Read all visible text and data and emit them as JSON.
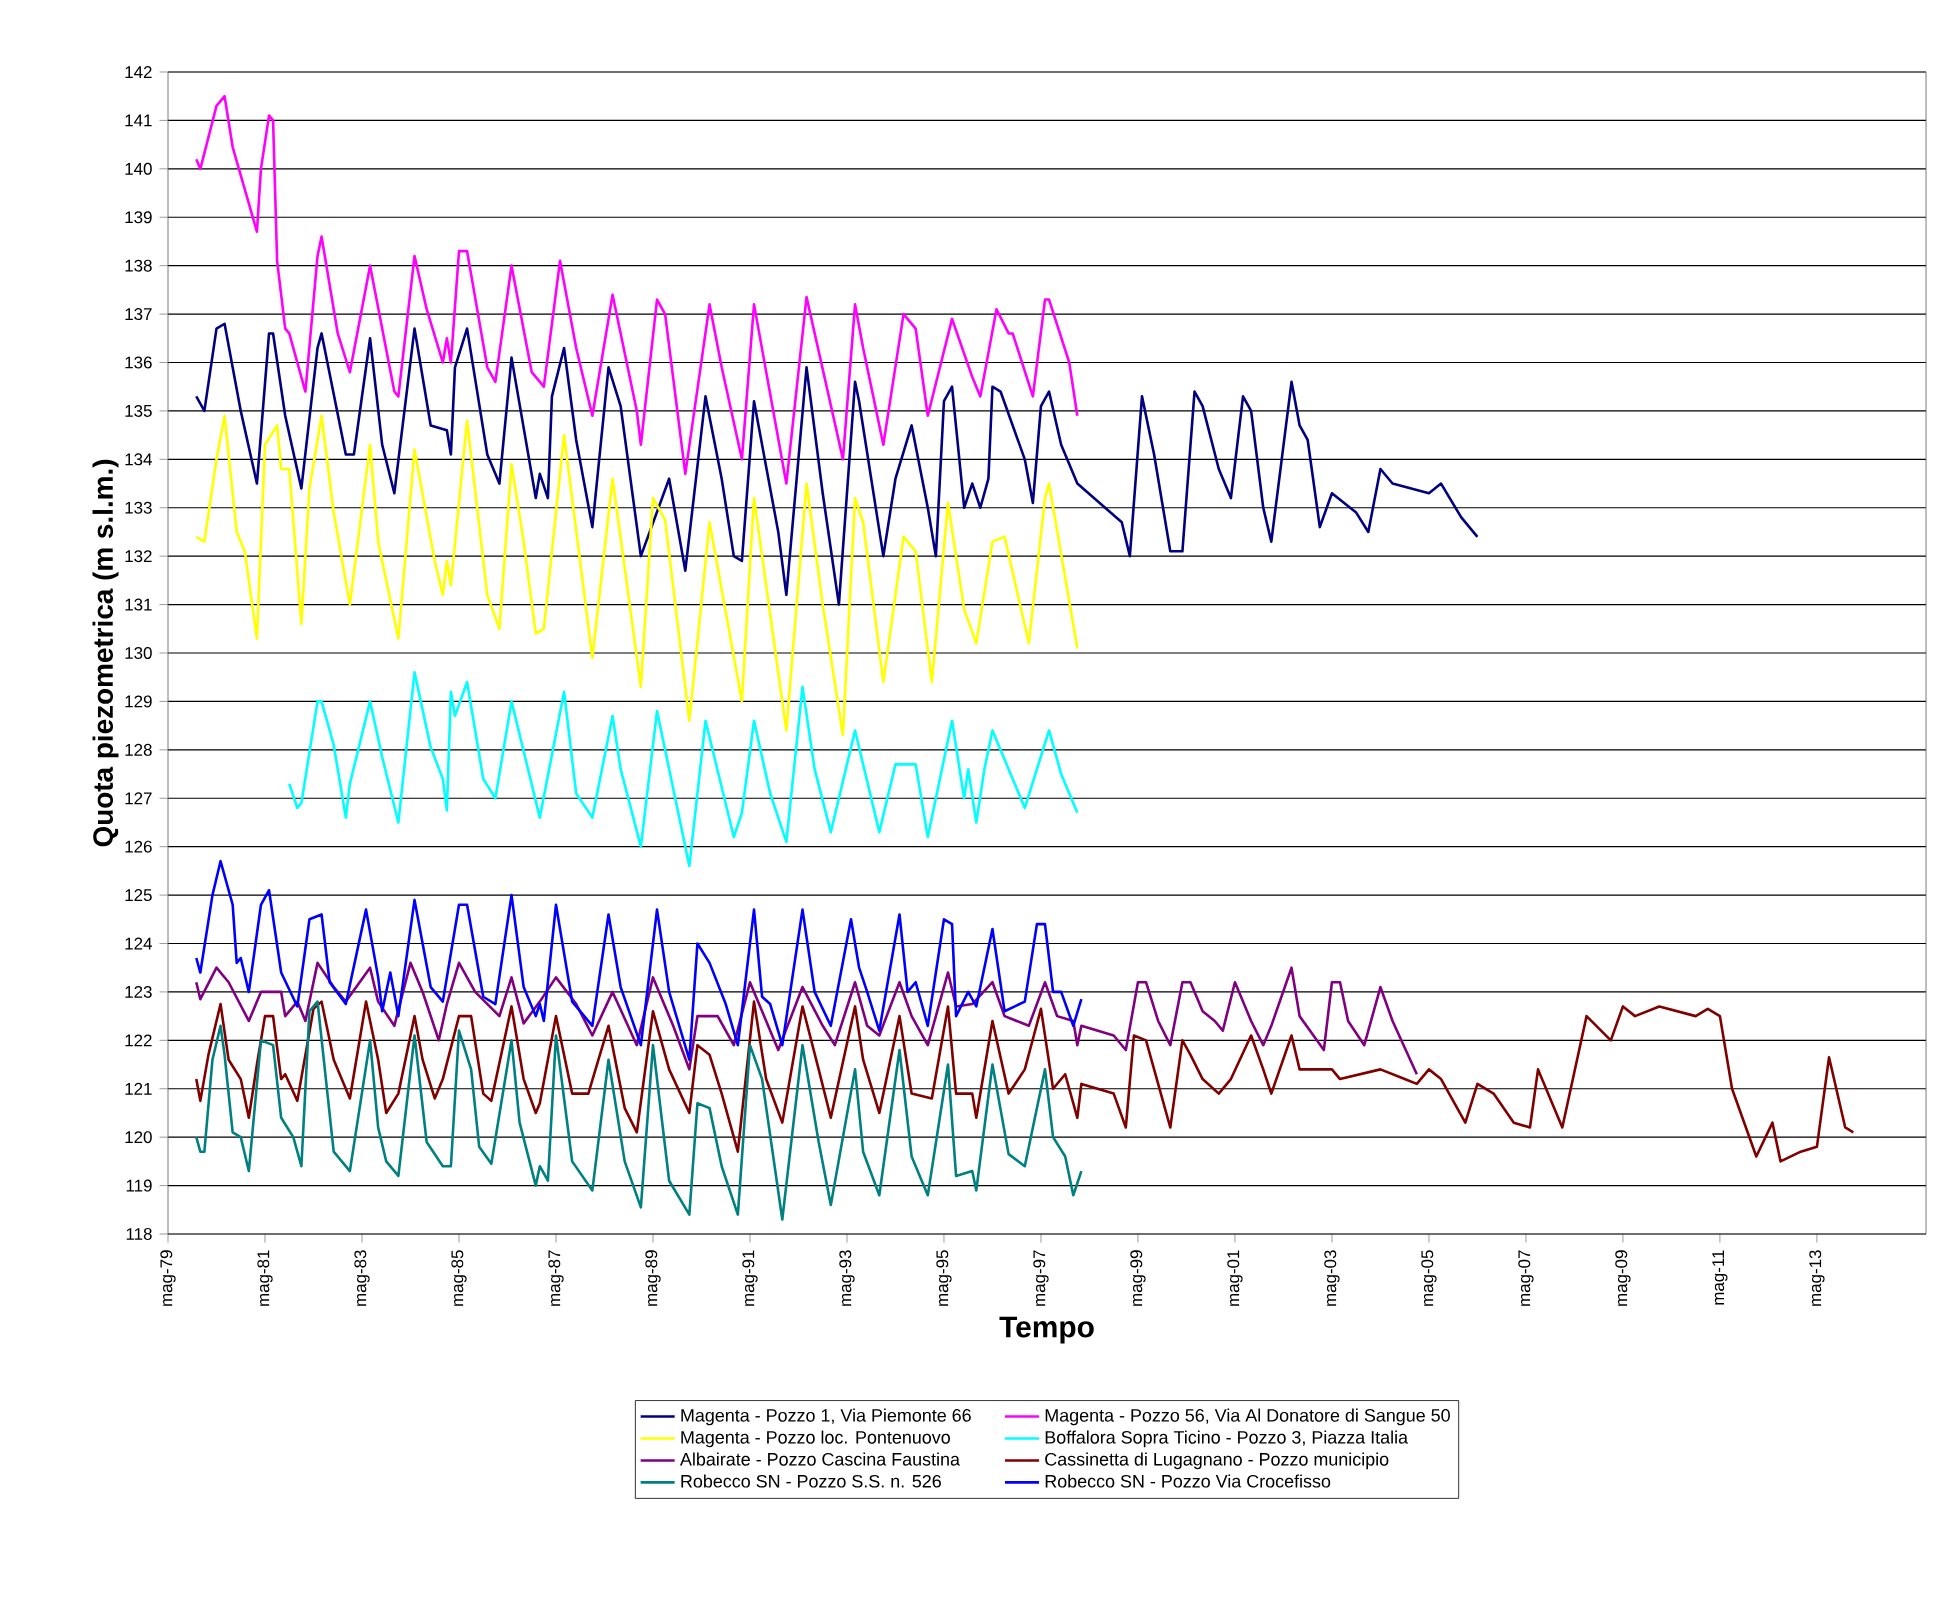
{
  "chart_data": {
    "type": "line",
    "xlabel": "Tempo",
    "ylabel": "Quota piezometrica (m s.l.m.)",
    "xlim": [
      "1979-05",
      "2015-08"
    ],
    "ylim": [
      118,
      142
    ],
    "yticks": [
      118,
      119,
      120,
      121,
      122,
      123,
      124,
      125,
      126,
      127,
      128,
      129,
      130,
      131,
      132,
      133,
      134,
      135,
      136,
      137,
      138,
      139,
      140,
      141,
      142
    ],
    "xticks": [
      {
        "value": "1979-05",
        "label": "mag-79"
      },
      {
        "value": "1981-05",
        "label": "mag-81"
      },
      {
        "value": "1983-05",
        "label": "mag-83"
      },
      {
        "value": "1985-05",
        "label": "mag-85"
      },
      {
        "value": "1987-05",
        "label": "mag-87"
      },
      {
        "value": "1989-05",
        "label": "mag-89"
      },
      {
        "value": "1991-05",
        "label": "mag-91"
      },
      {
        "value": "1993-05",
        "label": "mag-93"
      },
      {
        "value": "1995-05",
        "label": "mag-95"
      },
      {
        "value": "1997-05",
        "label": "mag-97"
      },
      {
        "value": "1999-05",
        "label": "mag-99"
      },
      {
        "value": "2001-05",
        "label": "mag-01"
      },
      {
        "value": "2003-05",
        "label": "mag-03"
      },
      {
        "value": "2005-05",
        "label": "mag-05"
      },
      {
        "value": "2007-05",
        "label": "mag-07"
      },
      {
        "value": "2009-05",
        "label": "mag-09"
      },
      {
        "value": "2011-05",
        "label": "mag-11"
      },
      {
        "value": "2013-05",
        "label": "mag-13"
      }
    ],
    "grid": "y",
    "legend": "bottom",
    "series": [
      {
        "name": "Magenta - Pozzo 1, Via Piemonte 66",
        "color": "#000080",
        "x": [
          "1979-12",
          "1980-02",
          "1980-05",
          "1980-07",
          "1980-11",
          "1981-03",
          "1981-06",
          "1981-07",
          "1981-10",
          "1982-02",
          "1982-06",
          "1982-07",
          "1983-01",
          "1983-03",
          "1983-07",
          "1983-10",
          "1984-01",
          "1984-06",
          "1984-10",
          "1985-02",
          "1985-03",
          "1985-04",
          "1985-07",
          "1985-12",
          "1986-03",
          "1986-06",
          "1986-12",
          "1987-01",
          "1987-03",
          "1987-04",
          "1987-07",
          "1987-10",
          "1988-02",
          "1988-06",
          "1988-09",
          "1989-02",
          "1989-09",
          "1990-01",
          "1990-06",
          "1990-10",
          "1991-01",
          "1991-03",
          "1991-06",
          "1991-12",
          "1992-02",
          "1992-07",
          "1992-11",
          "1993-03",
          "1993-07",
          "1993-08",
          "1993-11",
          "1994-02",
          "1994-05",
          "1994-09",
          "1995-01",
          "1995-03",
          "1995-05",
          "1995-07",
          "1995-10",
          "1995-12",
          "1996-02",
          "1996-04",
          "1996-05",
          "1996-07",
          "1997-01",
          "1997-03",
          "1997-05",
          "1997-07",
          "1997-10",
          "1998-02",
          "1999-01",
          "1999-03",
          "1999-06",
          "1999-09",
          "2000-01",
          "2000-04",
          "2000-07",
          "2000-09",
          "2001-01",
          "2001-04",
          "2001-07",
          "2001-09",
          "2001-12",
          "2002-02",
          "2002-07",
          "2002-09",
          "2002-11",
          "2003-02",
          "2003-05",
          "2003-11",
          "2004-02",
          "2004-05",
          "2004-08",
          "2005-05",
          "2005-08",
          "2006-01",
          "2006-05"
        ],
        "values": [
          135.3,
          135.0,
          136.7,
          136.8,
          135.0,
          133.5,
          136.6,
          136.6,
          134.9,
          133.4,
          136.3,
          136.6,
          134.1,
          134.1,
          136.5,
          134.3,
          133.3,
          136.7,
          134.7,
          134.6,
          134.1,
          135.9,
          136.7,
          134.1,
          133.5,
          136.1,
          133.2,
          133.7,
          133.2,
          135.3,
          136.3,
          134.4,
          132.6,
          135.9,
          135.1,
          132.0,
          133.6,
          131.7,
          135.3,
          133.6,
          132.0,
          131.9,
          135.2,
          132.5,
          131.2,
          135.9,
          133.3,
          131.0,
          135.6,
          135.2,
          133.6,
          132.0,
          133.6,
          134.7,
          133.0,
          132.0,
          135.2,
          135.5,
          133.0,
          133.5,
          133.0,
          133.6,
          135.5,
          135.4,
          134.0,
          133.1,
          135.1,
          135.4,
          134.3,
          133.5,
          132.7,
          132.0,
          135.3,
          134.1,
          132.1,
          132.1,
          135.4,
          135.1,
          133.8,
          133.2,
          135.3,
          135.0,
          133.0,
          132.3,
          135.6,
          134.7,
          134.4,
          132.6,
          133.3,
          132.9,
          132.5,
          133.8,
          133.5,
          133.3,
          133.5,
          132.8,
          132.4
        ]
      },
      {
        "name": "Magenta - Pozzo 56, Via Al Donatore di Sangue 50",
        "color": "#ff00ff",
        "x": [
          "1979-12",
          "1980-01",
          "1980-05",
          "1980-07",
          "1980-09",
          "1981-03",
          "1981-04",
          "1981-06",
          "1981-07",
          "1981-08",
          "1981-10",
          "1981-11",
          "1982-03",
          "1982-06",
          "1982-07",
          "1982-11",
          "1983-02",
          "1983-07",
          "1984-01",
          "1984-02",
          "1984-06",
          "1984-09",
          "1985-01",
          "1985-02",
          "1985-03",
          "1985-05",
          "1985-07",
          "1985-12",
          "1986-02",
          "1986-06",
          "1986-11",
          "1987-02",
          "1987-06",
          "1987-10",
          "1988-02",
          "1988-07",
          "1989-01",
          "1989-02",
          "1989-06",
          "1989-08",
          "1990-01",
          "1990-07",
          "1990-10",
          "1991-03",
          "1991-06",
          "1992-02",
          "1992-07",
          "1993-04",
          "1993-07",
          "1993-09",
          "1994-02",
          "1994-07",
          "1994-10",
          "1995-01",
          "1995-07",
          "1995-12",
          "1996-02",
          "1996-06",
          "1996-09",
          "1996-10",
          "1997-03",
          "1997-06",
          "1997-07",
          "1997-12",
          "1998-02"
        ],
        "values": [
          140.2,
          140.0,
          141.3,
          141.5,
          140.45,
          138.7,
          140.0,
          141.1,
          141.0,
          138.1,
          136.7,
          136.6,
          135.4,
          138.2,
          138.6,
          136.6,
          135.8,
          138.0,
          135.4,
          135.3,
          138.2,
          137.1,
          136.0,
          136.5,
          136.0,
          138.3,
          138.3,
          135.9,
          135.6,
          138.0,
          135.8,
          135.5,
          138.1,
          136.3,
          134.9,
          137.4,
          135.0,
          134.3,
          137.3,
          137.0,
          133.7,
          137.2,
          135.9,
          134.0,
          137.2,
          133.5,
          137.35,
          134.0,
          137.2,
          136.3,
          134.3,
          137.0,
          136.7,
          134.9,
          136.9,
          135.7,
          135.3,
          137.1,
          136.6,
          136.6,
          135.3,
          137.3,
          137.3,
          136.0,
          134.9
        ]
      },
      {
        "name": "Magenta - Pozzo loc. Pontenuovo",
        "color": "#ffff00",
        "x": [
          "1979-12",
          "1980-02",
          "1980-05",
          "1980-07",
          "1980-10",
          "1980-12",
          "1981-03",
          "1981-05",
          "1981-08",
          "1981-09",
          "1981-11",
          "1982-02",
          "1982-04",
          "1982-07",
          "1982-10",
          "1983-02",
          "1983-07",
          "1983-09",
          "1984-02",
          "1984-06",
          "1984-11",
          "1985-01",
          "1985-02",
          "1985-03",
          "1985-07",
          "1985-12",
          "1986-03",
          "1986-06",
          "1986-09",
          "1986-12",
          "1987-02",
          "1987-07",
          "1988-02",
          "1988-07",
          "1989-02",
          "1989-05",
          "1989-08",
          "1990-02",
          "1990-07",
          "1991-03",
          "1991-06",
          "1992-02",
          "1992-07",
          "1992-11",
          "1993-04",
          "1993-07",
          "1993-09",
          "1994-02",
          "1994-07",
          "1994-10",
          "1995-02",
          "1995-06",
          "1995-10",
          "1996-01",
          "1996-05",
          "1996-08",
          "1997-02",
          "1997-06",
          "1997-07",
          "1998-02"
        ],
        "values": [
          132.4,
          132.3,
          134.0,
          134.9,
          132.5,
          132.1,
          130.3,
          134.3,
          134.7,
          133.8,
          133.8,
          130.6,
          133.4,
          134.9,
          132.9,
          131.0,
          134.3,
          132.3,
          130.3,
          134.2,
          131.9,
          131.2,
          131.9,
          131.4,
          134.8,
          131.2,
          130.5,
          133.9,
          132.3,
          130.4,
          130.5,
          134.5,
          129.9,
          133.6,
          129.3,
          133.2,
          132.75,
          128.6,
          132.7,
          129.0,
          133.2,
          128.4,
          133.5,
          131.0,
          128.3,
          133.2,
          132.7,
          129.4,
          132.4,
          132.1,
          129.4,
          133.1,
          130.9,
          130.2,
          132.3,
          132.4,
          130.2,
          133.2,
          133.5,
          130.1
        ]
      },
      {
        "name": "Boffalora Sopra Ticino - Pozzo 3, Piazza Italia",
        "color": "#00ffff",
        "x": [
          "1981-11",
          "1982-01",
          "1982-02",
          "1982-06",
          "1982-07",
          "1982-10",
          "1983-01",
          "1983-02",
          "1983-07",
          "1983-10",
          "1984-02",
          "1984-06",
          "1984-10",
          "1985-01",
          "1985-02",
          "1985-03",
          "1985-04",
          "1985-07",
          "1985-11",
          "1986-02",
          "1986-06",
          "1987-01",
          "1987-07",
          "1987-10",
          "1988-02",
          "1988-07",
          "1988-09",
          "1989-02",
          "1989-06",
          "1990-02",
          "1990-06",
          "1991-01",
          "1991-03",
          "1991-06",
          "1991-10",
          "1992-02",
          "1992-06",
          "1992-09",
          "1993-01",
          "1993-07",
          "1994-01",
          "1994-05",
          "1994-10",
          "1995-01",
          "1995-07",
          "1995-10",
          "1995-11",
          "1996-01",
          "1996-03",
          "1996-05",
          "1996-09",
          "1997-01",
          "1997-07",
          "1997-10",
          "1998-02"
        ],
        "values": [
          127.3,
          126.8,
          126.9,
          129.0,
          129.0,
          128.1,
          126.6,
          127.3,
          129.0,
          127.85,
          126.5,
          129.6,
          128.05,
          127.4,
          126.75,
          129.2,
          128.7,
          129.4,
          127.4,
          127.0,
          129.0,
          126.6,
          129.2,
          127.1,
          126.6,
          128.7,
          127.6,
          126.0,
          128.8,
          125.6,
          128.6,
          126.2,
          126.7,
          128.6,
          127.1,
          126.1,
          129.3,
          127.6,
          126.3,
          128.4,
          126.3,
          127.7,
          127.7,
          126.2,
          128.6,
          127.0,
          127.6,
          126.5,
          127.6,
          128.4,
          127.6,
          126.8,
          128.4,
          127.5,
          126.7
        ]
      },
      {
        "name": "Albairate - Pozzo Cascina Faustina",
        "color": "#800080",
        "x": [
          "1979-12",
          "1980-01",
          "1980-05",
          "1980-08",
          "1981-01",
          "1981-04",
          "1981-09",
          "1981-10",
          "1982-01",
          "1982-03",
          "1982-06",
          "1982-10",
          "1983-01",
          "1983-07",
          "1983-09",
          "1984-01",
          "1984-05",
          "1984-08",
          "1984-12",
          "1985-02",
          "1985-05",
          "1985-09",
          "1986-03",
          "1986-06",
          "1986-09",
          "1987-01",
          "1987-05",
          "1987-10",
          "1988-02",
          "1988-07",
          "1989-01",
          "1989-05",
          "1989-10",
          "1990-02",
          "1990-04",
          "1990-09",
          "1991-01",
          "1991-05",
          "1991-12",
          "1992-06",
          "1992-11",
          "1993-02",
          "1993-07",
          "1993-10",
          "1994-01",
          "1994-06",
          "1994-09",
          "1995-01",
          "1995-06",
          "1995-08",
          "1995-12",
          "1996-05",
          "1996-08",
          "1997-02",
          "1997-06",
          "1997-09",
          "1998-01",
          "1998-02",
          "1998-03",
          "1998-11",
          "1999-02",
          "1999-05",
          "1999-07",
          "1999-10",
          "2000-01",
          "2000-04",
          "2000-06",
          "2000-09",
          "2000-12",
          "2001-02",
          "2001-05",
          "2001-09",
          "2001-12",
          "2002-02",
          "2002-07",
          "2002-09",
          "2003-03",
          "2003-05",
          "2003-07",
          "2003-09",
          "2004-01",
          "2004-05",
          "2004-08",
          "2005-02"
        ],
        "values": [
          123.2,
          122.85,
          123.5,
          123.2,
          122.4,
          123.0,
          123.0,
          122.5,
          122.8,
          122.4,
          123.6,
          123.1,
          122.8,
          123.5,
          122.8,
          122.3,
          123.6,
          123.0,
          122.0,
          122.75,
          123.6,
          123.0,
          122.5,
          123.3,
          122.35,
          122.8,
          123.3,
          122.75,
          122.1,
          123.0,
          121.9,
          123.3,
          122.3,
          121.4,
          122.5,
          122.5,
          121.9,
          123.2,
          121.8,
          123.1,
          122.3,
          121.9,
          123.2,
          122.3,
          122.1,
          123.2,
          122.5,
          121.9,
          123.4,
          122.7,
          122.75,
          123.2,
          122.5,
          122.3,
          123.2,
          122.5,
          122.4,
          121.9,
          122.3,
          122.1,
          121.8,
          123.2,
          123.2,
          122.4,
          121.9,
          123.2,
          123.2,
          122.6,
          122.4,
          122.2,
          123.2,
          122.4,
          121.9,
          122.3,
          123.5,
          122.5,
          121.8,
          123.2,
          123.2,
          122.4,
          121.9,
          123.1,
          122.4,
          121.3
        ]
      },
      {
        "name": "Cassinetta di Lugagnano - Pozzo municipio",
        "color": "#800000",
        "x": [
          "1979-12",
          "1980-01",
          "1980-03",
          "1980-06",
          "1980-08",
          "1980-11",
          "1981-01",
          "1981-03",
          "1981-05",
          "1981-07",
          "1981-09",
          "1981-10",
          "1982-01",
          "1982-05",
          "1982-07",
          "1982-10",
          "1983-02",
          "1983-06",
          "1983-09",
          "1983-11",
          "1984-02",
          "1984-06",
          "1984-08",
          "1984-11",
          "1985-01",
          "1985-05",
          "1985-08",
          "1985-11",
          "1986-01",
          "1986-06",
          "1986-09",
          "1986-12",
          "1987-01",
          "1987-05",
          "1987-09",
          "1988-01",
          "1988-06",
          "1988-10",
          "1989-01",
          "1989-05",
          "1989-09",
          "1990-02",
          "1990-04",
          "1990-07",
          "1990-10",
          "1991-02",
          "1991-06",
          "1991-09",
          "1992-01",
          "1992-06",
          "1992-10",
          "1993-01",
          "1993-07",
          "1993-09",
          "1994-01",
          "1994-06",
          "1994-09",
          "1995-02",
          "1995-06",
          "1995-08",
          "1995-12",
          "1996-01",
          "1996-05",
          "1996-09",
          "1997-01",
          "1997-05",
          "1997-08",
          "1997-11",
          "1998-02",
          "1998-03",
          "1998-11",
          "1999-02",
          "1999-04",
          "1999-07",
          "1999-11",
          "2000-01",
          "2000-04",
          "2000-06",
          "2000-09",
          "2001-01",
          "2001-04",
          "2001-09",
          "2001-12",
          "2002-02",
          "2002-07",
          "2002-09",
          "2002-11",
          "2003-05",
          "2003-07",
          "2004-05",
          "2004-11",
          "2005-02",
          "2005-05",
          "2005-08",
          "2006-02",
          "2006-05",
          "2006-09",
          "2007-02",
          "2007-06",
          "2007-08",
          "2008-02",
          "2008-08",
          "2009-02",
          "2009-05",
          "2009-08",
          "2010-02",
          "2010-11",
          "2011-02",
          "2011-05",
          "2011-08",
          "2012-02",
          "2012-06",
          "2012-08",
          "2013-01",
          "2013-05",
          "2013-08",
          "2013-12",
          "2014-02"
        ],
        "values": [
          121.2,
          120.75,
          121.7,
          122.75,
          121.6,
          121.2,
          120.4,
          121.5,
          122.5,
          122.5,
          121.2,
          121.3,
          120.75,
          122.65,
          122.8,
          121.6,
          120.8,
          122.8,
          121.6,
          120.5,
          120.9,
          122.5,
          121.6,
          120.8,
          121.2,
          122.5,
          122.5,
          120.9,
          120.75,
          122.7,
          121.2,
          120.5,
          120.7,
          122.5,
          120.9,
          120.9,
          122.3,
          120.6,
          120.1,
          122.6,
          121.4,
          120.5,
          121.9,
          121.7,
          120.9,
          119.7,
          122.8,
          121.2,
          120.3,
          122.7,
          121.4,
          120.4,
          122.7,
          121.6,
          120.5,
          122.5,
          120.9,
          120.8,
          122.7,
          120.9,
          120.9,
          120.4,
          122.4,
          120.9,
          121.4,
          122.65,
          121.0,
          121.3,
          120.4,
          121.1,
          120.9,
          120.2,
          122.1,
          122.0,
          120.8,
          120.2,
          122.0,
          121.7,
          121.2,
          120.9,
          121.2,
          122.1,
          121.4,
          120.9,
          122.1,
          121.4,
          121.4,
          121.4,
          121.2,
          121.4,
          121.2,
          121.1,
          121.4,
          121.2,
          120.3,
          121.1,
          120.9,
          120.3,
          120.2,
          121.4,
          120.2,
          122.5,
          122.0,
          122.7,
          122.5,
          122.7,
          122.5,
          122.65,
          122.5,
          121.0,
          119.6,
          120.3,
          119.5,
          119.7,
          119.8,
          121.65,
          120.2,
          120.1
        ]
      },
      {
        "name": "Robecco SN - Pozzo S.S. n. 526",
        "color": "#008080",
        "x": [
          "1979-12",
          "1980-01",
          "1980-02",
          "1980-04",
          "1980-06",
          "1980-07",
          "1980-09",
          "1980-11",
          "1981-01",
          "1981-04",
          "1981-07",
          "1981-09",
          "1981-12",
          "1982-02",
          "1982-04",
          "1982-06",
          "1982-10",
          "1983-02",
          "1983-07",
          "1983-09",
          "1983-11",
          "1984-02",
          "1984-06",
          "1984-09",
          "1985-01",
          "1985-03",
          "1985-05",
          "1985-08",
          "1985-10",
          "1986-01",
          "1986-06",
          "1986-08",
          "1986-12",
          "1987-01",
          "1987-03",
          "1987-05",
          "1987-09",
          "1988-02",
          "1988-06",
          "1988-10",
          "1989-02",
          "1989-05",
          "1989-09",
          "1990-02",
          "1990-04",
          "1990-07",
          "1990-10",
          "1991-02",
          "1991-05",
          "1991-08",
          "1992-01",
          "1992-06",
          "1992-10",
          "1993-01",
          "1993-07",
          "1993-09",
          "1994-01",
          "1994-06",
          "1994-09",
          "1995-01",
          "1995-06",
          "1995-08",
          "1995-12",
          "1996-01",
          "1996-05",
          "1996-09",
          "1997-01",
          "1997-06",
          "1997-08",
          "1997-11",
          "1998-01",
          "1998-03"
        ],
        "values": [
          120.0,
          119.7,
          119.7,
          121.6,
          122.3,
          121.7,
          120.1,
          120.0,
          119.3,
          122.0,
          121.9,
          120.4,
          120.0,
          119.4,
          122.6,
          122.8,
          119.7,
          119.3,
          122.0,
          120.2,
          119.5,
          119.2,
          122.1,
          119.9,
          119.4,
          119.4,
          122.2,
          121.4,
          119.8,
          119.45,
          122.0,
          120.3,
          119.0,
          119.4,
          119.1,
          122.1,
          119.5,
          118.9,
          121.6,
          119.5,
          118.55,
          121.9,
          119.1,
          118.4,
          120.7,
          120.6,
          119.4,
          118.4,
          121.9,
          121.2,
          118.3,
          121.9,
          119.9,
          118.6,
          121.4,
          119.7,
          118.8,
          121.8,
          119.6,
          118.8,
          121.5,
          119.2,
          119.3,
          118.9,
          121.5,
          119.65,
          119.4,
          121.4,
          120.0,
          119.6,
          118.8,
          119.3
        ]
      },
      {
        "name": "Robecco SN - Pozzo Via Crocefisso",
        "color": "#0000ff",
        "x": [
          "1979-12",
          "1980-01",
          "1980-04",
          "1980-06",
          "1980-09",
          "1980-10",
          "1980-11",
          "1981-01",
          "1981-04",
          "1981-06",
          "1981-09",
          "1982-01",
          "1982-04",
          "1982-07",
          "1982-09",
          "1983-01",
          "1983-06",
          "1983-09",
          "1983-10",
          "1983-12",
          "1984-02",
          "1984-06",
          "1984-10",
          "1985-01",
          "1985-05",
          "1985-07",
          "1985-11",
          "1986-02",
          "1986-06",
          "1986-09",
          "1986-12",
          "1987-01",
          "1987-02",
          "1987-05",
          "1987-09",
          "1988-02",
          "1988-06",
          "1988-09",
          "1989-02",
          "1989-06",
          "1989-09",
          "1990-02",
          "1990-04",
          "1990-07",
          "1990-11",
          "1991-02",
          "1991-06",
          "1991-08",
          "1991-10",
          "1992-01",
          "1992-06",
          "1992-09",
          "1993-01",
          "1993-06",
          "1993-08",
          "1993-10",
          "1994-01",
          "1994-06",
          "1994-08",
          "1994-10",
          "1995-01",
          "1995-05",
          "1995-07",
          "1995-08",
          "1995-11",
          "1996-01",
          "1996-05",
          "1996-08",
          "1997-01",
          "1997-04",
          "1997-06",
          "1997-08",
          "1997-10",
          "1998-01",
          "1998-03"
        ],
        "values": [
          123.7,
          123.4,
          125.0,
          125.7,
          124.8,
          123.6,
          123.7,
          123.0,
          124.8,
          125.1,
          123.4,
          122.7,
          124.5,
          124.6,
          123.2,
          122.75,
          124.7,
          123.3,
          122.6,
          123.4,
          122.5,
          124.9,
          123.1,
          122.8,
          124.8,
          124.8,
          122.9,
          122.75,
          125.0,
          123.1,
          122.5,
          122.75,
          122.4,
          124.8,
          122.8,
          122.3,
          124.6,
          123.1,
          121.9,
          124.7,
          123.0,
          121.6,
          124.0,
          123.6,
          122.75,
          121.9,
          124.7,
          122.9,
          122.75,
          121.9,
          124.7,
          123.0,
          122.3,
          124.5,
          123.5,
          123.0,
          122.2,
          124.6,
          123.0,
          123.2,
          122.3,
          124.5,
          124.4,
          122.5,
          123.0,
          122.7,
          124.3,
          122.6,
          122.8,
          124.4,
          124.4,
          123.0,
          123.0,
          122.3,
          122.85
        ]
      }
    ]
  }
}
